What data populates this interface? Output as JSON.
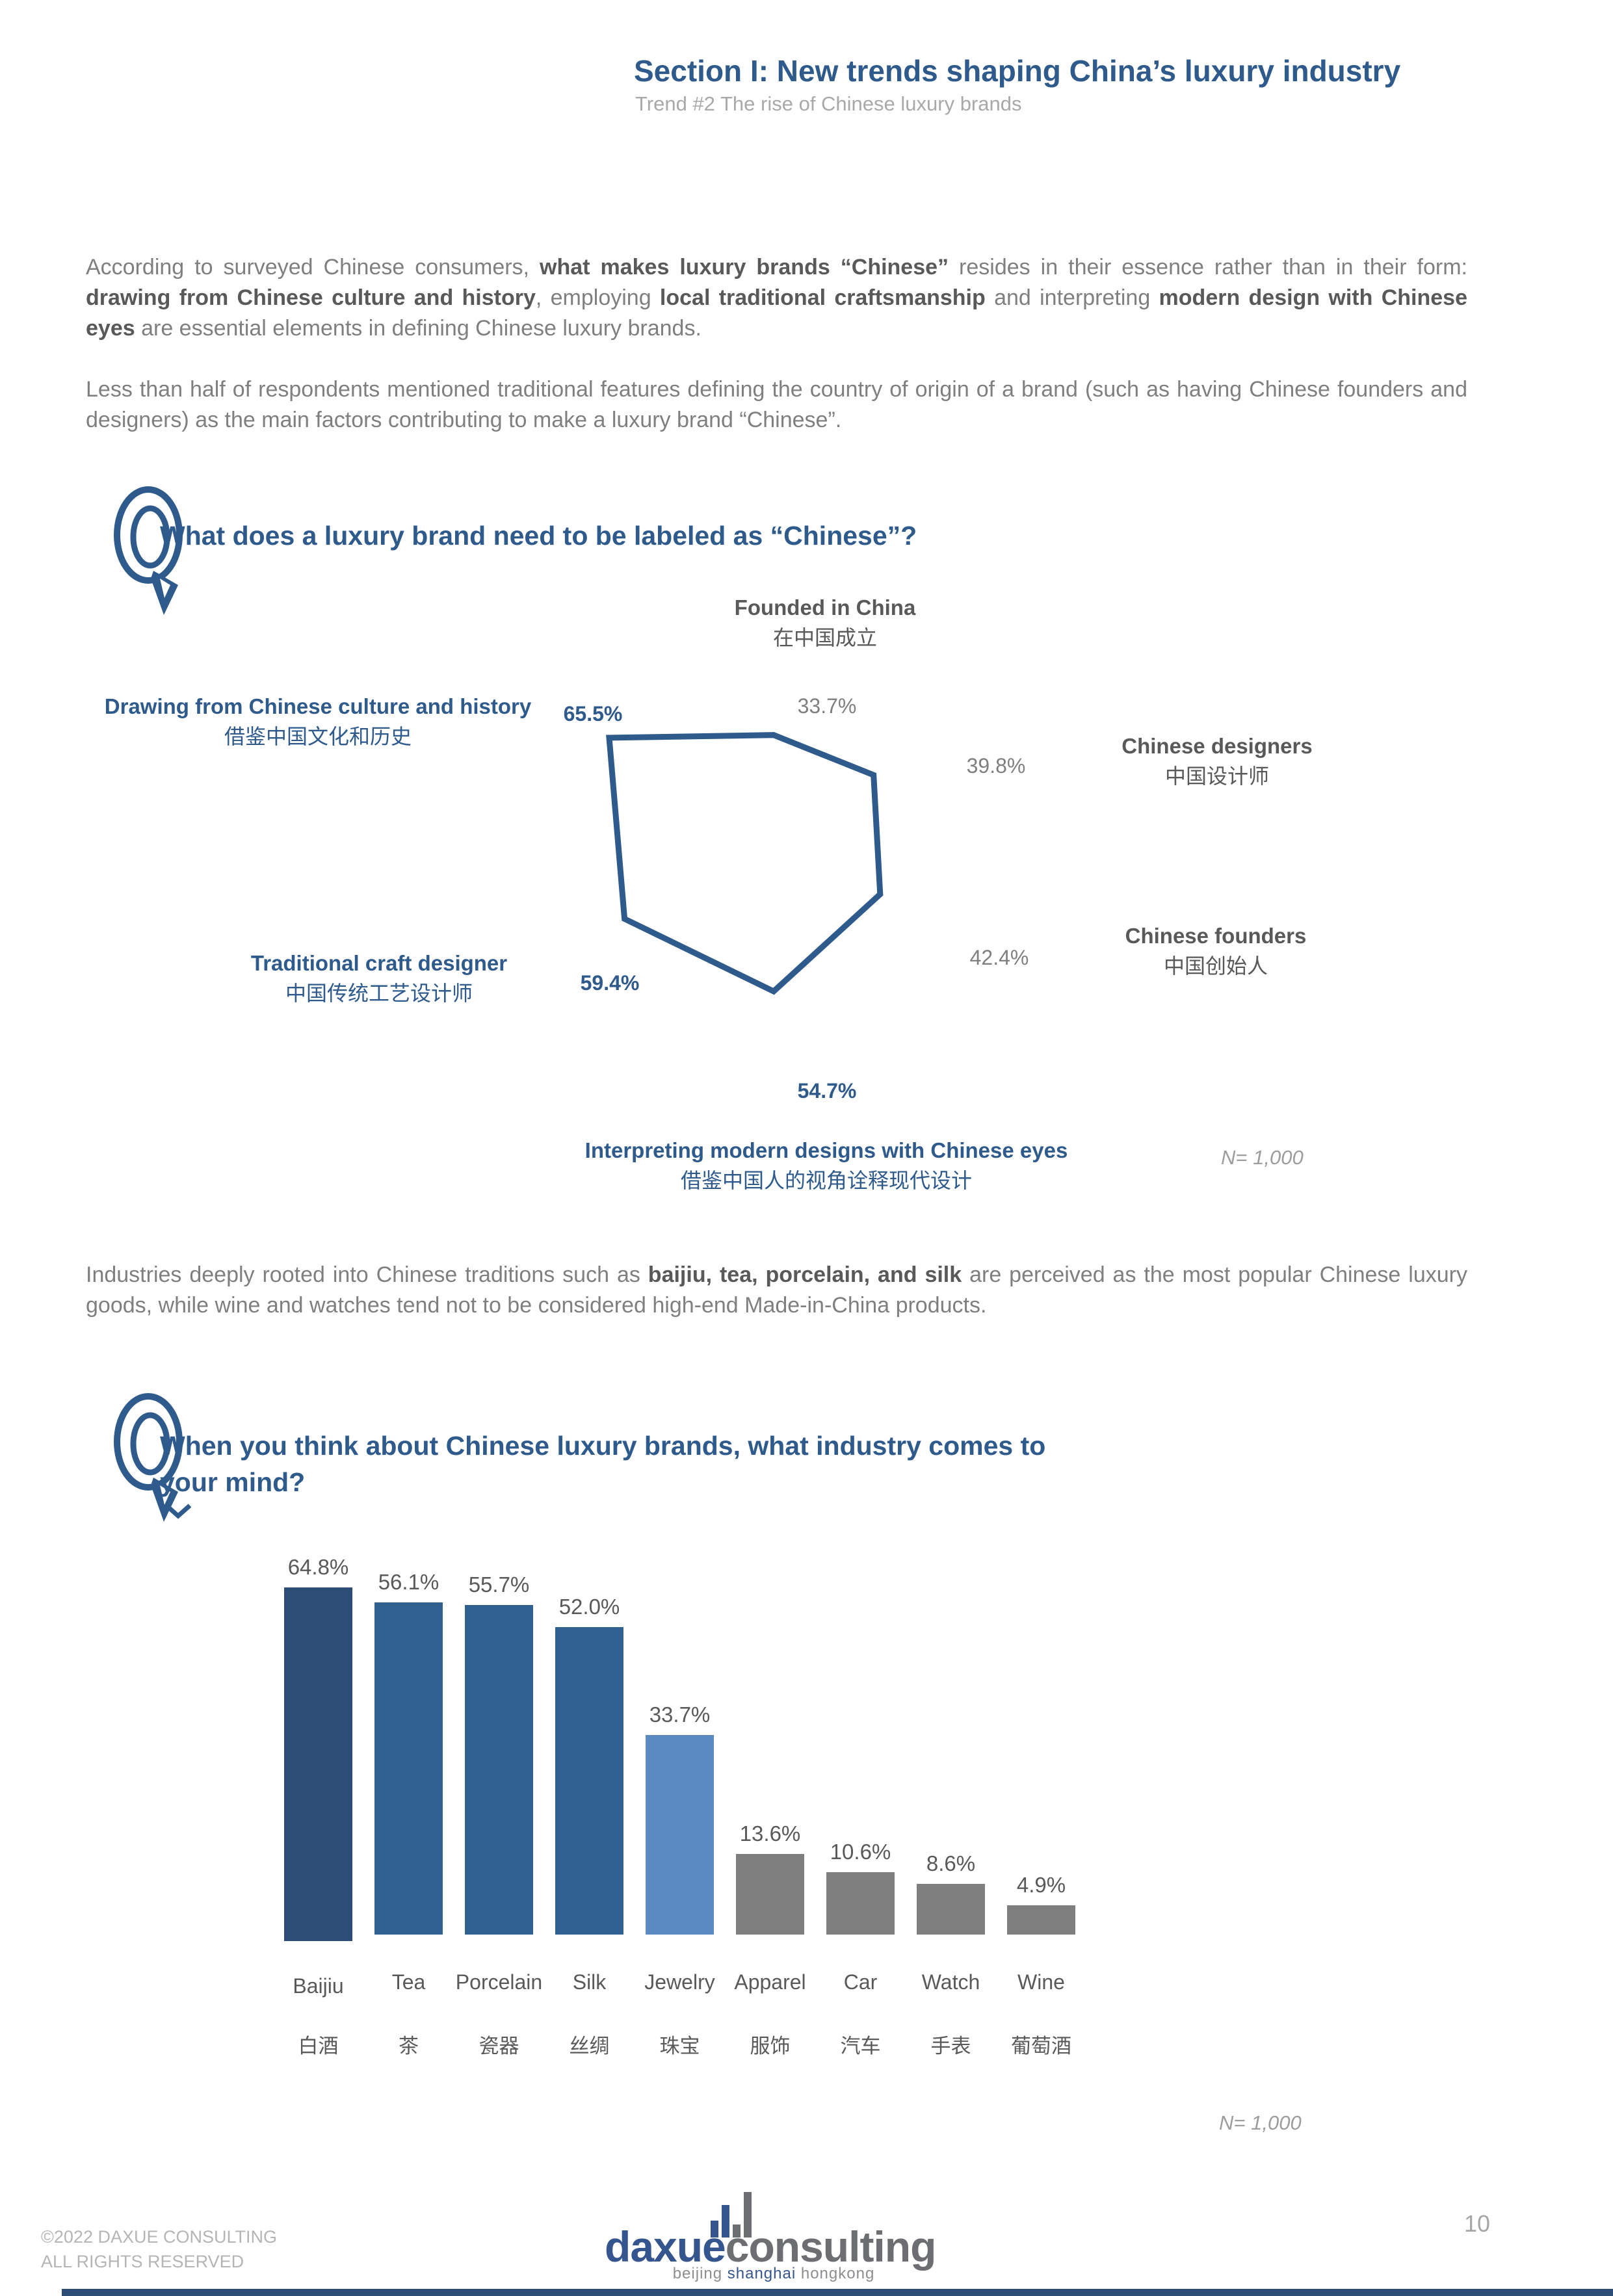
{
  "header": {
    "title": "Section I: New trends shaping China’s luxury industry",
    "subtitle": "Trend #2 The rise of Chinese luxury brands"
  },
  "paragraphs": {
    "p1": [
      {
        "text": "According to surveyed Chinese consumers, ",
        "bold": false
      },
      {
        "text": "what makes luxury brands “Chinese”",
        "bold": true
      },
      {
        "text": " resides in their essence rather than in their form: ",
        "bold": false
      },
      {
        "text": "drawing from Chinese culture and history",
        "bold": true
      },
      {
        "text": ", employing ",
        "bold": false
      },
      {
        "text": "local traditional craftsmanship",
        "bold": true
      },
      {
        "text": " and interpreting ",
        "bold": false
      },
      {
        "text": "modern design with Chinese eyes",
        "bold": true
      },
      {
        "text": " are essential elements in defining Chinese luxury brands.",
        "bold": false
      }
    ],
    "p2": [
      {
        "text": "Less than half of respondents mentioned traditional features defining the country of origin of a brand (such as having Chinese founders and designers) as the main factors contributing to make a luxury brand “Chinese”.",
        "bold": false
      }
    ],
    "p3": [
      {
        "text": "Industries deeply rooted into Chinese traditions such as ",
        "bold": false
      },
      {
        "text": "baijiu, tea, porcelain, and silk",
        "bold": true
      },
      {
        "text": " are perceived as the most popular Chinese luxury goods, while wine and watches tend not to be considered high-end Made-in-China products.",
        "bold": false
      }
    ]
  },
  "question1": {
    "title": "What does a luxury brand need to be labeled as “Chinese”?"
  },
  "question2": {
    "title": "When you think about Chinese luxury brands, what industry comes to your mind?"
  },
  "chart_data": [
    {
      "type": "radar",
      "title": "What does a luxury brand need to be labeled as “Chinese”?",
      "axis_order": "clockwise from top",
      "axes": [
        {
          "label_en": "Founded in China",
          "label_zh": "在中国成立",
          "value": 33.7,
          "highlighted": false
        },
        {
          "label_en": "Chinese designers",
          "label_zh": "中国设计师",
          "value": 39.8,
          "highlighted": false
        },
        {
          "label_en": "Chinese founders",
          "label_zh": "中国创始人",
          "value": 42.4,
          "highlighted": false
        },
        {
          "label_en": "Interpreting modern designs with Chinese eyes",
          "label_zh": "借鉴中国人的视角诠释现代设计",
          "value": 54.7,
          "highlighted": true
        },
        {
          "label_en": "Traditional craft designer",
          "label_zh": "中国传统工艺设计师",
          "value": 59.4,
          "highlighted": true
        },
        {
          "label_en": "Drawing from Chinese culture and history",
          "label_zh": "借鉴中国文化和历史",
          "value": 65.5,
          "highlighted": true
        }
      ],
      "stroke_color": "#2e5a8c",
      "sample_note": "N= 1,000",
      "grid": false,
      "legend": false
    },
    {
      "type": "bar",
      "title": "When you think about Chinese luxury brands, what industry comes to your mind?",
      "categories": [
        "Baijiu",
        "Tea",
        "Porcelain",
        "Silk",
        "Jewelry",
        "Apparel",
        "Car",
        "Watch",
        "Wine"
      ],
      "categories_zh": [
        "白酒",
        "茶",
        "瓷器",
        "丝绸",
        "珠宝",
        "服饰",
        "汽车",
        "手表",
        "葡萄酒"
      ],
      "values": [
        64.8,
        56.1,
        55.7,
        52.0,
        33.7,
        13.6,
        10.6,
        8.6,
        4.9
      ],
      "bar_colors": [
        "#2d4d76",
        "#30608f",
        "#30608f",
        "#30608f",
        "#5b8ac2",
        "#7f7f7f",
        "#7f7f7f",
        "#7f7f7f",
        "#7f7f7f"
      ],
      "xlabel": "",
      "ylabel": "",
      "ylim": [
        0,
        70
      ],
      "sample_note": "N= 1,000",
      "grid": false,
      "legend": false
    }
  ],
  "footer": {
    "copyright_line1": "©2022 DAXUE CONSULTING",
    "copyright_line2": "ALL RIGHTS RESERVED",
    "page_number": "10",
    "logo": {
      "part1": "daxue",
      "part2": "consulting",
      "tagline1": "beijing ",
      "tagline2": "shanghai",
      "tagline3": " hongkong"
    }
  },
  "colors": {
    "accent_navy": "#2e5a8c",
    "dark_gray_text": "#595959",
    "body_gray_text": "#7f7f7f",
    "light_gray_text": "#a9a9a9",
    "jewelry_blue": "#5b8ac2",
    "bar_gray": "#7f7f7f"
  }
}
